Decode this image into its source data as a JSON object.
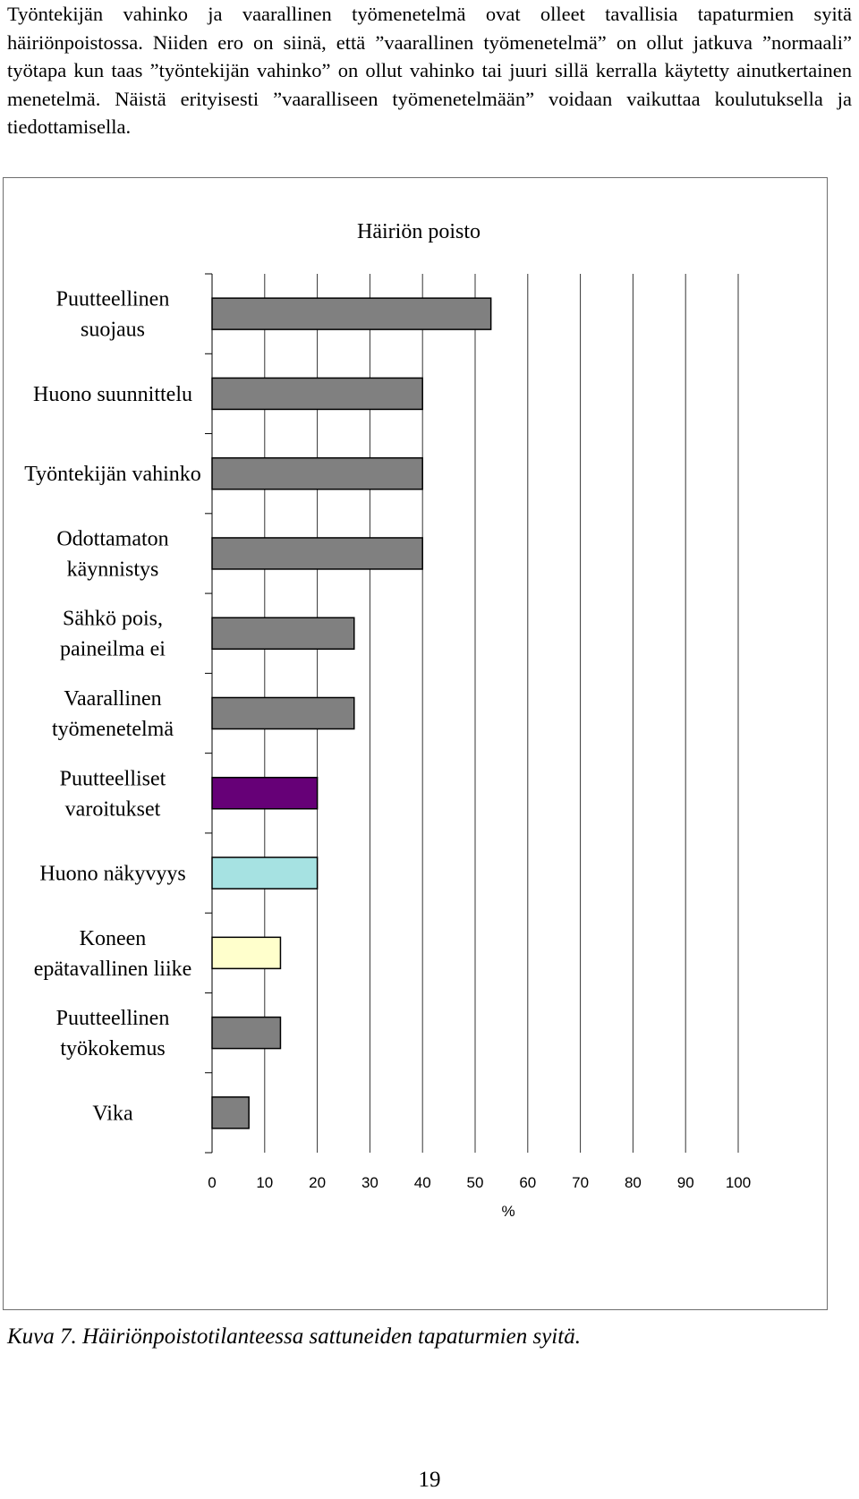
{
  "paragraph": "Työntekijän vahinko ja vaarallinen työmenetelmä ovat olleet tavallisia tapaturmien syitä häiriönpoistossa. Niiden ero on siinä, että ”vaarallinen työmenetelmä” on ollut jatkuva ”normaali” työtapa kun taas ”työntekijän vahinko” on ollut vahinko tai juuri sillä kerralla käytetty ainutkertainen menetelmä. Näistä erityisesti ”vaaralliseen työmenetelmään” voidaan vaikuttaa koulutuksella ja tiedottamisella.",
  "chart_data": {
    "type": "bar",
    "orientation": "horizontal",
    "title": "Häiriön poisto",
    "xlabel": "%",
    "ylabel": "",
    "xlim": [
      0,
      100
    ],
    "xticks": [
      "0",
      "10",
      "20",
      "30",
      "40",
      "50",
      "60",
      "70",
      "80",
      "90",
      "100"
    ],
    "grid": true,
    "legend": "none",
    "categories": [
      [
        "Puutteellinen",
        "suojaus"
      ],
      [
        "Huono suunnittelu"
      ],
      [
        "Työntekijän vahinko"
      ],
      [
        "Odottamaton",
        "käynnistys"
      ],
      [
        "Sähkö pois,",
        "paineilma ei"
      ],
      [
        "Vaarallinen",
        "työmenetelmä"
      ],
      [
        "Puutteelliset",
        "varoitukset"
      ],
      [
        "Huono näkyvyys"
      ],
      [
        "Koneen",
        "epätavallinen liike"
      ],
      [
        "Puutteellinen",
        "työkokemus"
      ],
      [
        "Vika"
      ]
    ],
    "values": [
      53,
      40,
      40,
      40,
      27,
      27,
      20,
      20,
      13,
      13,
      7
    ],
    "colors": [
      "#808080",
      "#808080",
      "#808080",
      "#808080",
      "#808080",
      "#808080",
      "#660077",
      "#a6e2e2",
      "#ffffcc",
      "#808080",
      "#808080"
    ]
  },
  "caption": "Kuva 7. Häiriönpoistotilanteessa sattuneiden tapaturmien syitä.",
  "page_number": "19"
}
